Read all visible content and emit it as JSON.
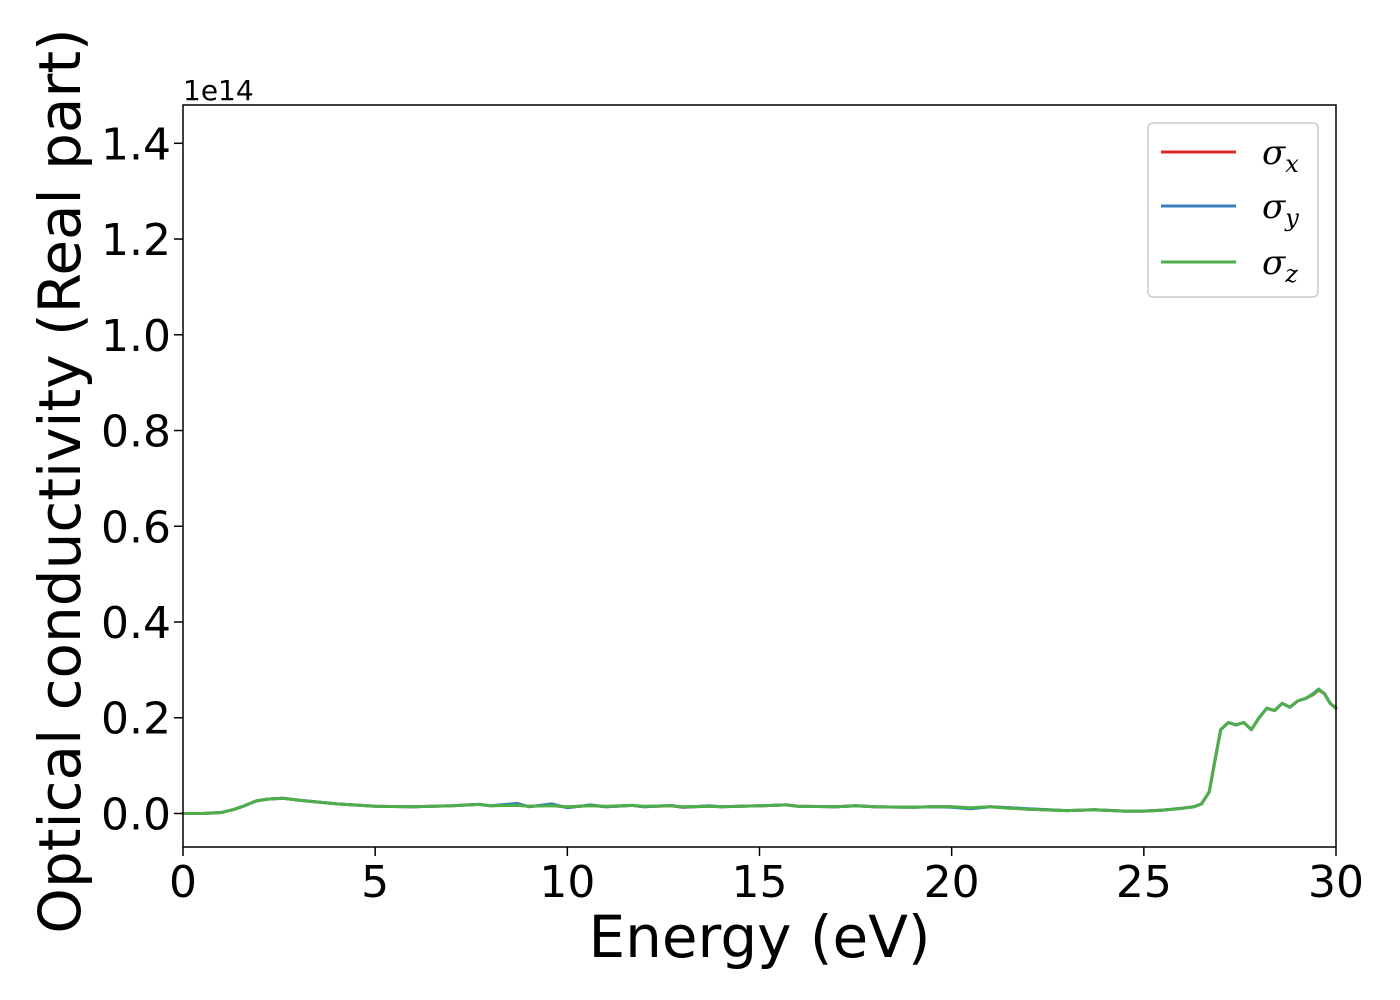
{
  "chart_data": {
    "type": "line",
    "title": "",
    "xlabel": "Energy (eV)",
    "ylabel": "Optical conductivity (Real part)",
    "xlim": [
      0,
      30
    ],
    "ylim": [
      -0.07,
      1.48
    ],
    "y_offset_text": "1e14",
    "y_multiplier": 100000000000000.0,
    "xticks": [
      0,
      5,
      10,
      15,
      20,
      25,
      30
    ],
    "xtick_labels": [
      "0",
      "5",
      "10",
      "15",
      "20",
      "25",
      "30"
    ],
    "yticks": [
      0.0,
      0.2,
      0.4,
      0.6,
      0.8,
      1.0,
      1.2,
      1.4
    ],
    "ytick_labels": [
      "0.0",
      "0.2",
      "0.4",
      "0.6",
      "0.8",
      "1.0",
      "1.2",
      "1.4"
    ],
    "grid": false,
    "legend_position": "top-right",
    "series": [
      {
        "name": "σx",
        "legend_base": "σ",
        "legend_sub": "x",
        "color": "#d62728",
        "x": [
          0,
          0.5,
          1.0,
          1.3,
          1.6,
          1.9,
          2.2,
          2.6,
          3.0,
          3.5,
          4.0,
          5.0,
          6.0,
          7.0,
          7.7,
          8.0,
          8.7,
          9.0,
          9.6,
          10.0,
          10.6,
          11.0,
          11.7,
          12.0,
          12.7,
          13.0,
          13.7,
          14.0,
          15.0,
          15.7,
          16.0,
          17.0,
          17.5,
          18.0,
          19.0,
          19.5,
          20.0,
          20.5,
          21.0,
          21.5,
          22.0,
          23.0,
          23.7,
          24.5,
          25.0,
          25.5,
          26.0,
          26.3,
          26.5,
          26.7,
          26.85,
          27.0,
          27.2,
          27.4,
          27.6,
          27.8,
          28.0,
          28.2,
          28.4,
          28.6,
          28.8,
          29.0,
          29.2,
          29.4,
          29.55,
          29.7,
          29.85,
          30.0
        ],
        "y": [
          0.0,
          0.0,
          0.002,
          0.008,
          0.016,
          0.026,
          0.03,
          0.032,
          0.028,
          0.024,
          0.02,
          0.015,
          0.014,
          0.016,
          0.019,
          0.016,
          0.018,
          0.015,
          0.017,
          0.013,
          0.017,
          0.014,
          0.017,
          0.014,
          0.016,
          0.013,
          0.015,
          0.014,
          0.016,
          0.018,
          0.015,
          0.014,
          0.016,
          0.014,
          0.013,
          0.014,
          0.014,
          0.011,
          0.014,
          0.012,
          0.009,
          0.006,
          0.008,
          0.005,
          0.005,
          0.007,
          0.011,
          0.014,
          0.02,
          0.045,
          0.11,
          0.175,
          0.19,
          0.185,
          0.19,
          0.175,
          0.2,
          0.22,
          0.215,
          0.23,
          0.222,
          0.235,
          0.24,
          0.248,
          0.258,
          0.25,
          0.23,
          0.22
        ]
      },
      {
        "name": "σy",
        "legend_base": "σ",
        "legend_sub": "y",
        "color": "#377eb8",
        "x": [
          0,
          0.5,
          1.0,
          1.3,
          1.6,
          1.9,
          2.2,
          2.6,
          3.0,
          3.5,
          4.0,
          5.0,
          6.0,
          7.0,
          7.7,
          8.0,
          8.7,
          9.0,
          9.6,
          10.0,
          10.6,
          11.0,
          11.7,
          12.0,
          12.7,
          13.0,
          13.7,
          14.0,
          15.0,
          15.7,
          16.0,
          17.0,
          17.5,
          18.0,
          19.0,
          19.5,
          20.0,
          20.5,
          21.0,
          21.5,
          22.0,
          23.0,
          23.7,
          24.5,
          25.0,
          25.5,
          26.0,
          26.3,
          26.5,
          26.7,
          26.85,
          27.0,
          27.2,
          27.4,
          27.6,
          27.8,
          28.0,
          28.2,
          28.4,
          28.6,
          28.8,
          29.0,
          29.2,
          29.4,
          29.55,
          29.7,
          29.85,
          30.0
        ],
        "y": [
          0.0,
          0.0,
          0.002,
          0.008,
          0.016,
          0.026,
          0.03,
          0.032,
          0.028,
          0.024,
          0.02,
          0.015,
          0.014,
          0.016,
          0.019,
          0.016,
          0.021,
          0.014,
          0.02,
          0.012,
          0.018,
          0.014,
          0.017,
          0.014,
          0.017,
          0.013,
          0.016,
          0.014,
          0.016,
          0.018,
          0.015,
          0.014,
          0.016,
          0.014,
          0.013,
          0.014,
          0.013,
          0.01,
          0.014,
          0.012,
          0.01,
          0.006,
          0.008,
          0.005,
          0.005,
          0.007,
          0.011,
          0.014,
          0.02,
          0.045,
          0.11,
          0.175,
          0.19,
          0.185,
          0.19,
          0.175,
          0.2,
          0.22,
          0.215,
          0.23,
          0.222,
          0.235,
          0.24,
          0.25,
          0.26,
          0.25,
          0.23,
          0.22
        ]
      },
      {
        "name": "σz",
        "legend_base": "σ",
        "legend_sub": "z",
        "color": "#4daf4a",
        "x": [
          0,
          0.5,
          1.0,
          1.3,
          1.6,
          1.9,
          2.2,
          2.6,
          3.0,
          3.5,
          4.0,
          5.0,
          6.0,
          7.0,
          7.7,
          8.0,
          8.7,
          9.0,
          9.6,
          10.0,
          10.6,
          11.0,
          11.7,
          12.0,
          12.7,
          13.0,
          13.7,
          14.0,
          15.0,
          15.7,
          16.0,
          17.0,
          17.5,
          18.0,
          19.0,
          19.5,
          20.0,
          20.5,
          21.0,
          21.5,
          22.0,
          23.0,
          23.7,
          24.5,
          25.0,
          25.5,
          26.0,
          26.3,
          26.5,
          26.7,
          26.85,
          27.0,
          27.2,
          27.4,
          27.6,
          27.8,
          28.0,
          28.2,
          28.4,
          28.6,
          28.8,
          29.0,
          29.2,
          29.4,
          29.55,
          29.7,
          29.85,
          30.0
        ],
        "y": [
          0.0,
          0.0,
          0.002,
          0.008,
          0.016,
          0.026,
          0.03,
          0.032,
          0.028,
          0.024,
          0.02,
          0.015,
          0.014,
          0.016,
          0.019,
          0.016,
          0.017,
          0.015,
          0.016,
          0.014,
          0.016,
          0.015,
          0.017,
          0.015,
          0.016,
          0.014,
          0.015,
          0.014,
          0.016,
          0.018,
          0.015,
          0.014,
          0.016,
          0.014,
          0.013,
          0.014,
          0.014,
          0.012,
          0.014,
          0.011,
          0.009,
          0.006,
          0.008,
          0.005,
          0.005,
          0.007,
          0.011,
          0.014,
          0.02,
          0.045,
          0.11,
          0.175,
          0.19,
          0.185,
          0.19,
          0.175,
          0.2,
          0.22,
          0.215,
          0.23,
          0.222,
          0.235,
          0.24,
          0.249,
          0.259,
          0.25,
          0.23,
          0.22
        ]
      }
    ]
  }
}
